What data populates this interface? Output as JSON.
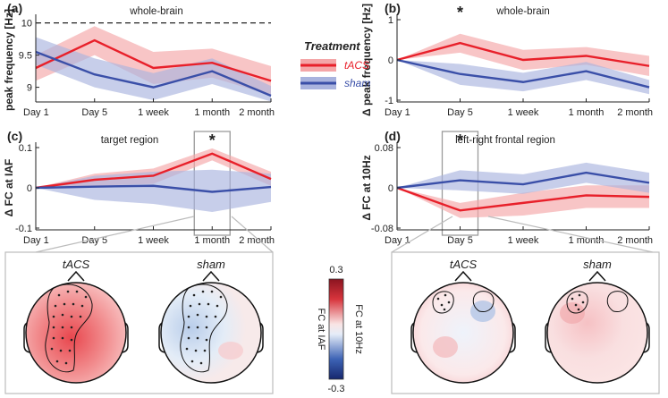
{
  "legend": {
    "title": "Treatment",
    "entries": [
      {
        "label": "tACS",
        "color": "#e8202a",
        "band": "#f4a6a8"
      },
      {
        "label": "sham",
        "color": "#3a4fa8",
        "band": "#a9b3de"
      }
    ]
  },
  "colorbar": {
    "max_label": "0.3",
    "min_label": "-0.3",
    "label_left": "FC at IAF",
    "label_right": "FC at 10Hz",
    "color_max": "#b81d2a",
    "color_min": "#1f3a94"
  },
  "chart_data": [
    {
      "panel": "(a)",
      "type": "line",
      "title": "whole-brain",
      "ylabel": "peak frequency [Hz]",
      "ylim": [
        8.8,
        10.05
      ],
      "yticks": [
        "10",
        "9.5",
        "9"
      ],
      "ytick_values": [
        10,
        9.5,
        9
      ],
      "categories": [
        "Day 1",
        "Day 5",
        "1 week",
        "1 month",
        "2 month"
      ],
      "reference_line": 10,
      "significance": [],
      "series": [
        {
          "name": "tACS",
          "values": [
            9.3,
            9.73,
            9.3,
            9.38,
            9.1
          ],
          "lower": [
            9.1,
            9.5,
            9.05,
            9.15,
            8.88
          ],
          "upper": [
            9.5,
            9.95,
            9.55,
            9.6,
            9.33
          ]
        },
        {
          "name": "sham",
          "values": [
            9.55,
            9.2,
            9.0,
            9.25,
            8.87
          ],
          "lower": [
            9.35,
            9.0,
            8.8,
            9.05,
            8.78
          ],
          "upper": [
            9.78,
            9.45,
            9.22,
            9.45,
            9.02
          ]
        }
      ]
    },
    {
      "panel": "(b)",
      "type": "line",
      "title": "whole-brain",
      "ylabel": "Δ peak frequency [Hz]",
      "ylim": [
        -1,
        1
      ],
      "yticks": [
        "1",
        "0",
        "-1"
      ],
      "ytick_values": [
        1,
        0,
        -1
      ],
      "categories": [
        "Day 1",
        "Day 5",
        "1 week",
        "1 month",
        "2 month"
      ],
      "significance": [
        {
          "category": "Day 5",
          "label": "*"
        }
      ],
      "series": [
        {
          "name": "tACS",
          "values": [
            0,
            0.42,
            0.0,
            0.1,
            -0.15
          ],
          "lower": [
            0,
            0.18,
            -0.25,
            -0.12,
            -0.4
          ],
          "upper": [
            0,
            0.65,
            0.25,
            0.32,
            0.1
          ]
        },
        {
          "name": "sham",
          "values": [
            0,
            -0.35,
            -0.55,
            -0.28,
            -0.68
          ],
          "lower": [
            0,
            -0.62,
            -0.78,
            -0.5,
            -0.85
          ],
          "upper": [
            0,
            -0.1,
            -0.32,
            -0.05,
            -0.5
          ]
        }
      ]
    },
    {
      "panel": "(c)",
      "type": "line",
      "title": "target region",
      "ylabel": "Δ FC at IAF",
      "ylim": [
        -0.1,
        0.1
      ],
      "yticks": [
        "0.1",
        "0",
        "-0.1"
      ],
      "ytick_values": [
        0.1,
        0,
        -0.1
      ],
      "categories": [
        "Day 1",
        "Day 5",
        "1 week",
        "1 month",
        "2 month"
      ],
      "significance": [
        {
          "category": "1 month",
          "label": "*"
        }
      ],
      "highlight": "1 month",
      "series": [
        {
          "name": "tACS",
          "values": [
            0,
            0.02,
            0.03,
            0.085,
            0.022
          ],
          "lower": [
            0,
            0.005,
            0.01,
            0.068,
            0.005
          ],
          "upper": [
            0,
            0.035,
            0.048,
            0.098,
            0.04
          ]
        },
        {
          "name": "sham",
          "values": [
            0,
            0.003,
            0.005,
            -0.01,
            0.002
          ],
          "lower": [
            0,
            -0.03,
            -0.04,
            -0.06,
            -0.035
          ],
          "upper": [
            0,
            0.03,
            0.04,
            0.045,
            0.035
          ]
        }
      ]
    },
    {
      "panel": "(d)",
      "type": "line",
      "title": "left-right frontal region",
      "ylabel": "Δ FC at 10Hz",
      "ylim": [
        -0.08,
        0.08
      ],
      "yticks": [
        "0.08",
        "0",
        "-0.08"
      ],
      "ytick_values": [
        0.08,
        0,
        -0.08
      ],
      "categories": [
        "Day 1",
        "Day 5",
        "1 week",
        "1 month",
        "2 month"
      ],
      "significance": [
        {
          "category": "Day 5",
          "label": "*"
        }
      ],
      "highlight": "Day 5",
      "series": [
        {
          "name": "tACS",
          "values": [
            0,
            -0.045,
            -0.03,
            -0.015,
            -0.018
          ],
          "lower": [
            0,
            -0.06,
            -0.055,
            -0.04,
            -0.04
          ],
          "upper": [
            0,
            -0.03,
            -0.01,
            0.005,
            0.005
          ]
        },
        {
          "name": "sham",
          "values": [
            0,
            0.015,
            0.007,
            0.03,
            0.01
          ],
          "lower": [
            0,
            -0.005,
            -0.012,
            0.01,
            -0.01
          ],
          "upper": [
            0,
            0.035,
            0.027,
            0.05,
            0.03
          ]
        }
      ]
    }
  ],
  "topomaps": [
    {
      "label": "tACS",
      "group": "c"
    },
    {
      "label": "sham",
      "group": "c"
    },
    {
      "label": "tACS",
      "group": "d"
    },
    {
      "label": "sham",
      "group": "d"
    }
  ]
}
